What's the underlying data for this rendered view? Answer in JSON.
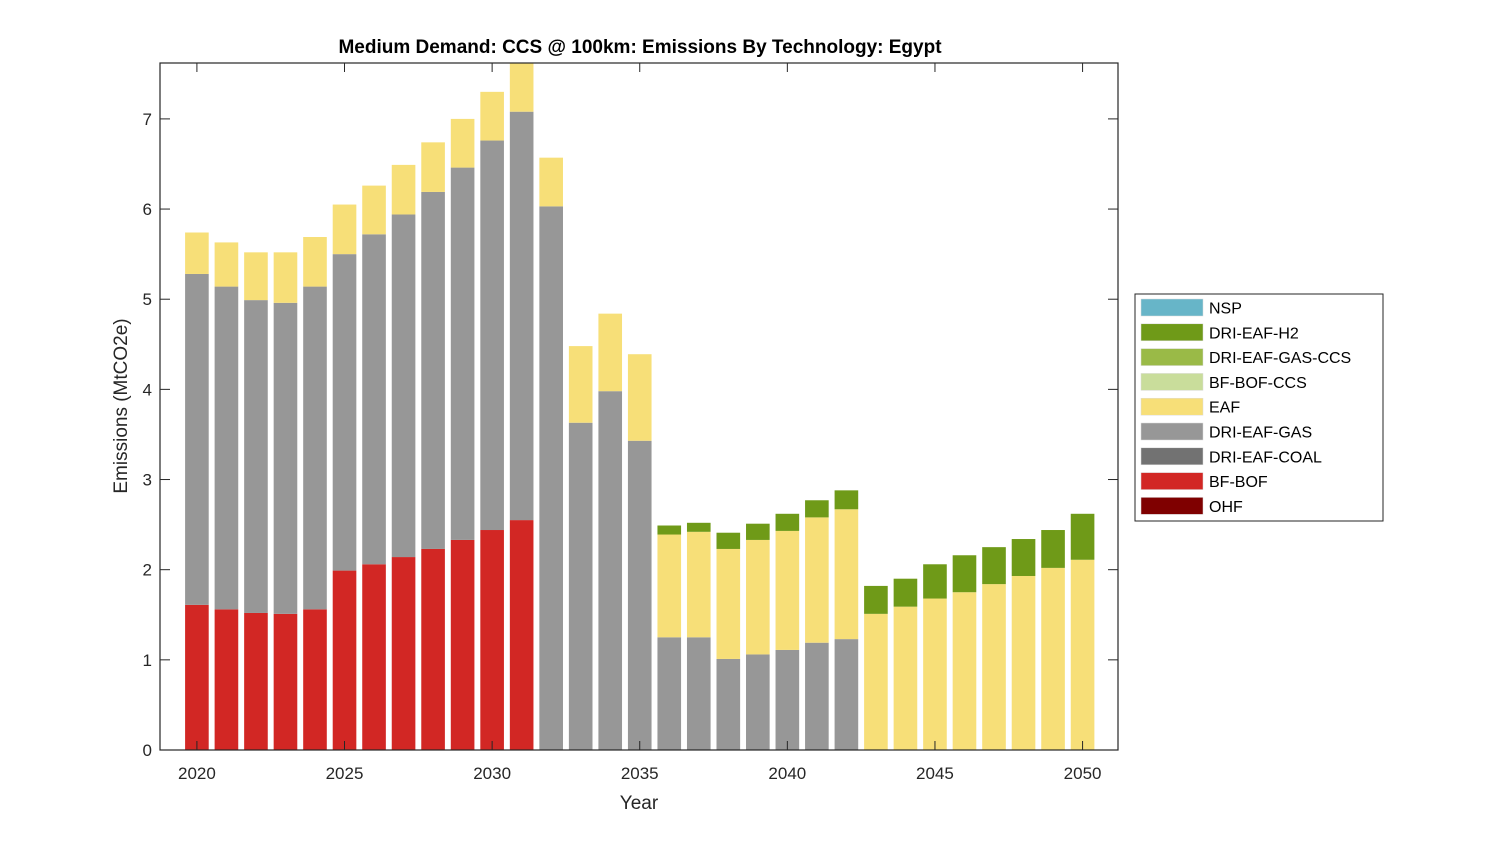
{
  "chart_data": {
    "type": "bar",
    "stacked": true,
    "title": "Medium Demand: CCS @ 100km: Emissions By Technology: Egypt",
    "xlabel": "Year",
    "ylabel": "Emissions (MtCO2e)",
    "xlim": [
      2018.75,
      2051.2
    ],
    "ylim": [
      0,
      7.62
    ],
    "xticks": [
      2020,
      2025,
      2030,
      2035,
      2040,
      2045,
      2050
    ],
    "yticks": [
      0,
      1,
      2,
      3,
      4,
      5,
      6,
      7
    ],
    "grid": false,
    "legend_position": "outside-right",
    "x": [
      2020,
      2021,
      2022,
      2023,
      2024,
      2025,
      2026,
      2027,
      2028,
      2029,
      2030,
      2031,
      2032,
      2033,
      2034,
      2035,
      2036,
      2037,
      2038,
      2039,
      2040,
      2041,
      2042,
      2043,
      2044,
      2045,
      2046,
      2047,
      2048,
      2049,
      2050
    ],
    "legend": [
      "NSP",
      "DRI-EAF-H2",
      "DRI-EAF-GAS-CCS",
      "BF-BOF-CCS",
      "EAF",
      "DRI-EAF-GAS",
      "DRI-EAF-COAL",
      "BF-BOF",
      "OHF"
    ],
    "series": [
      {
        "name": "OHF",
        "color": "#7f0000",
        "values": [
          0,
          0,
          0,
          0,
          0,
          0,
          0,
          0,
          0,
          0,
          0,
          0,
          0,
          0,
          0,
          0,
          0,
          0,
          0,
          0,
          0,
          0,
          0,
          0,
          0,
          0,
          0,
          0,
          0,
          0,
          0
        ]
      },
      {
        "name": "BF-BOF",
        "color": "#d22724",
        "values": [
          1.61,
          1.56,
          1.52,
          1.51,
          1.56,
          1.99,
          2.06,
          2.14,
          2.23,
          2.33,
          2.44,
          2.55,
          0,
          0,
          0,
          0,
          0,
          0,
          0,
          0,
          0,
          0,
          0,
          0,
          0,
          0,
          0,
          0,
          0,
          0,
          0
        ]
      },
      {
        "name": "DRI-EAF-COAL",
        "color": "#727272",
        "values": [
          0,
          0,
          0,
          0,
          0,
          0,
          0,
          0,
          0,
          0,
          0,
          0,
          0,
          0,
          0,
          0,
          0,
          0,
          0,
          0,
          0,
          0,
          0,
          0,
          0,
          0,
          0,
          0,
          0,
          0,
          0
        ]
      },
      {
        "name": "DRI-EAF-GAS",
        "color": "#979797",
        "values": [
          3.67,
          3.58,
          3.47,
          3.45,
          3.58,
          3.51,
          3.66,
          3.8,
          3.96,
          4.13,
          4.32,
          4.53,
          6.03,
          3.63,
          3.98,
          3.43,
          1.25,
          1.25,
          1.01,
          1.06,
          1.11,
          1.19,
          1.23,
          0,
          0,
          0,
          0,
          0,
          0,
          0,
          0
        ]
      },
      {
        "name": "EAF",
        "color": "#f7df78",
        "values": [
          0.46,
          0.49,
          0.53,
          0.56,
          0.55,
          0.55,
          0.54,
          0.55,
          0.55,
          0.54,
          0.54,
          0.57,
          0.54,
          0.85,
          0.86,
          0.96,
          1.14,
          1.17,
          1.22,
          1.27,
          1.32,
          1.39,
          1.44,
          1.51,
          1.59,
          1.68,
          1.75,
          1.84,
          1.93,
          2.02,
          2.11
        ]
      },
      {
        "name": "BF-BOF-CCS",
        "color": "#c9dd9b",
        "values": [
          0,
          0,
          0,
          0,
          0,
          0,
          0,
          0,
          0,
          0,
          0,
          0,
          0,
          0,
          0,
          0,
          0,
          0,
          0,
          0,
          0,
          0,
          0,
          0,
          0,
          0,
          0,
          0,
          0,
          0,
          0
        ]
      },
      {
        "name": "DRI-EAF-GAS-CCS",
        "color": "#9aba47",
        "values": [
          0,
          0,
          0,
          0,
          0,
          0,
          0,
          0,
          0,
          0,
          0,
          0,
          0,
          0,
          0,
          0,
          0,
          0,
          0,
          0,
          0,
          0,
          0,
          0,
          0,
          0,
          0,
          0,
          0,
          0,
          0
        ]
      },
      {
        "name": "DRI-EAF-H2",
        "color": "#6f9a18",
        "values": [
          0,
          0,
          0,
          0,
          0,
          0,
          0,
          0,
          0,
          0,
          0,
          0,
          0,
          0,
          0,
          0,
          0.1,
          0.1,
          0.18,
          0.18,
          0.19,
          0.19,
          0.21,
          0.31,
          0.31,
          0.38,
          0.41,
          0.41,
          0.41,
          0.42,
          0.51
        ]
      },
      {
        "name": "NSP",
        "color": "#67b5c8",
        "values": [
          0,
          0,
          0,
          0,
          0,
          0,
          0,
          0,
          0,
          0,
          0,
          0,
          0,
          0,
          0,
          0,
          0,
          0,
          0,
          0,
          0,
          0,
          0,
          0,
          0,
          0,
          0,
          0,
          0,
          0,
          0
        ]
      }
    ]
  }
}
